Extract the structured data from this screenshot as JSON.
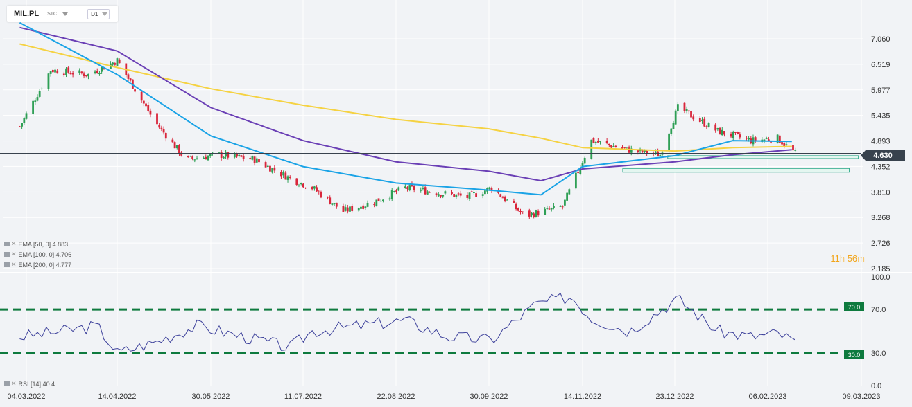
{
  "toolbar": {
    "symbol": "MIL.PL",
    "type": "STC",
    "timeframe": "D1"
  },
  "price_axis": {
    "labels": [
      "7.060",
      "6.519",
      "5.977",
      "5.435",
      "4.893",
      "4.352",
      "3.810",
      "3.268",
      "2.726",
      "2.185"
    ]
  },
  "rsi_axis": {
    "labels": [
      "100.0",
      "70.0",
      "30.0",
      "0.0"
    ]
  },
  "date_axis": {
    "labels": [
      "04.03.2022",
      "14.04.2022",
      "30.05.2022",
      "11.07.2022",
      "22.08.2022",
      "30.09.2022",
      "14.11.2022",
      "23.12.2022",
      "06.02.2023",
      "09.03.2023"
    ]
  },
  "current_price": "4.630",
  "timer": {
    "hours": "11",
    "h_unit": "h",
    "minutes": "56",
    "m_unit": "m"
  },
  "indicators": [
    {
      "label": "EMA [50, 0] 4.883",
      "color": "#1aa3e6"
    },
    {
      "label": "EMA [100, 0] 4.706",
      "color": "#6a3fb5"
    },
    {
      "label": "EMA [200, 0] 4.777",
      "color": "#f5d242"
    }
  ],
  "rsi": {
    "label": "RSI [14] 40.4",
    "overbought": "70.0",
    "oversold": "30.0",
    "color": "#3b3f9a",
    "level_color": "#0e7a3e"
  },
  "chart_data": {
    "type": "candlestick",
    "x": [
      "2022-03-01",
      "2022-03-15",
      "2022-04-01",
      "2022-04-14",
      "2022-05-01",
      "2022-05-15",
      "2022-05-30",
      "2022-06-15",
      "2022-07-01",
      "2022-07-11",
      "2022-07-25",
      "2022-08-08",
      "2022-08-22",
      "2022-09-05",
      "2022-09-19",
      "2022-09-30",
      "2022-10-15",
      "2022-11-01",
      "2022-11-14",
      "2022-12-01",
      "2022-12-15",
      "2022-12-23",
      "2023-01-10",
      "2023-01-25",
      "2023-02-06",
      "2023-02-14"
    ],
    "close": [
      5.2,
      6.4,
      6.3,
      6.6,
      5.3,
      4.5,
      4.6,
      4.5,
      4.1,
      3.9,
      3.4,
      3.6,
      3.9,
      3.8,
      3.7,
      3.9,
      3.3,
      3.5,
      4.9,
      4.7,
      4.6,
      5.6,
      5.1,
      4.9,
      4.95,
      4.63
    ],
    "ema": {
      "x": [
        "2022-03-01",
        "2022-04-14",
        "2022-05-30",
        "2022-07-11",
        "2022-08-22",
        "2022-09-30",
        "2022-10-25",
        "2022-11-14",
        "2022-12-23",
        "2023-01-20",
        "2023-02-14"
      ],
      "ema50": [
        7.4,
        6.3,
        5.0,
        4.35,
        4.0,
        3.85,
        3.75,
        4.35,
        4.58,
        4.9,
        4.883
      ],
      "ema100": [
        7.3,
        6.8,
        5.6,
        4.9,
        4.45,
        4.25,
        4.05,
        4.3,
        4.45,
        4.6,
        4.706
      ],
      "ema200": [
        6.95,
        6.45,
        6.0,
        5.65,
        5.35,
        5.15,
        4.95,
        4.75,
        4.68,
        4.75,
        4.777
      ]
    },
    "rsi": {
      "x": [
        "2022-03-01",
        "2022-03-20",
        "2022-04-05",
        "2022-04-14",
        "2022-05-01",
        "2022-05-20",
        "2022-06-10",
        "2022-07-01",
        "2022-07-11",
        "2022-08-01",
        "2022-08-22",
        "2022-09-10",
        "2022-09-30",
        "2022-10-20",
        "2022-11-05",
        "2022-11-14",
        "2022-12-01",
        "2022-12-23",
        "2023-01-10",
        "2023-01-25",
        "2023-02-06",
        "2023-02-14"
      ],
      "values": [
        45,
        50,
        55,
        30,
        40,
        55,
        45,
        35,
        50,
        55,
        60,
        45,
        42,
        75,
        82,
        62,
        50,
        80,
        50,
        45,
        48,
        40.4
      ],
      "levels": [
        70,
        30
      ],
      "ylim": [
        0,
        100
      ]
    },
    "zones": [
      {
        "x": [
          "2022-12-20",
          "2023-03-08"
        ],
        "y": [
          4.52,
          4.58
        ]
      },
      {
        "x": [
          "2022-12-01",
          "2023-03-05"
        ],
        "y": [
          4.23,
          4.31
        ]
      }
    ],
    "ylim": [
      2.185,
      7.33
    ]
  }
}
